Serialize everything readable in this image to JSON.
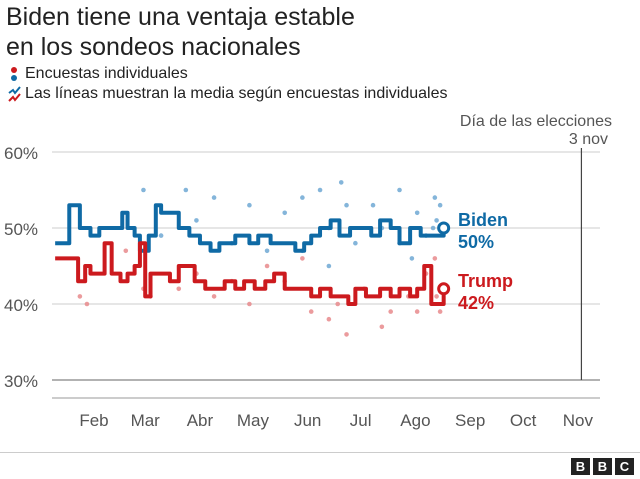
{
  "title_lines": [
    "Biden tiene una ventaja estable",
    "en los sondeos nacionales"
  ],
  "legend": {
    "dots": "Encuestas individuales",
    "lines": "Las líneas muestran la media según encuestas individuales"
  },
  "logo": "BBC",
  "chart_data": {
    "type": "line",
    "title": "Biden tiene una ventaja estable en los sondeos nacionales",
    "xlabel": "",
    "ylabel": "",
    "x_unit": "day of year 2020",
    "ylim": [
      30,
      60
    ],
    "yticks": [
      {
        "v": 60,
        "label": "60%"
      },
      {
        "v": 50,
        "label": "50%"
      },
      {
        "v": 40,
        "label": "40%"
      },
      {
        "v": 30,
        "label": "30%"
      }
    ],
    "xticks": [
      {
        "day": 32,
        "label": "Feb"
      },
      {
        "day": 61,
        "label": "Mar"
      },
      {
        "day": 92,
        "label": "Abr"
      },
      {
        "day": 122,
        "label": "May"
      },
      {
        "day": 153,
        "label": "Jun"
      },
      {
        "day": 183,
        "label": "Jul"
      },
      {
        "day": 214,
        "label": "Ago"
      },
      {
        "day": 245,
        "label": "Sep"
      },
      {
        "day": 275,
        "label": "Oct"
      },
      {
        "day": 306,
        "label": "Nov"
      }
    ],
    "annotation": {
      "day": 308,
      "line1": "Día de las elecciones",
      "line2": "3 nov"
    },
    "series": [
      {
        "name": "Biden",
        "final_label": "50%",
        "color": "#0f6aa5",
        "dot_color": "#6fa8d4",
        "line": [
          [
            10,
            48
          ],
          [
            16,
            48
          ],
          [
            18,
            53
          ],
          [
            21,
            53
          ],
          [
            24,
            50
          ],
          [
            30,
            49
          ],
          [
            35,
            50
          ],
          [
            44,
            50
          ],
          [
            48,
            52
          ],
          [
            51,
            50
          ],
          [
            55,
            49
          ],
          [
            58,
            47
          ],
          [
            63,
            49
          ],
          [
            67,
            53
          ],
          [
            70,
            52
          ],
          [
            76,
            52
          ],
          [
            80,
            50
          ],
          [
            86,
            49
          ],
          [
            92,
            48
          ],
          [
            98,
            47
          ],
          [
            103,
            48
          ],
          [
            112,
            49
          ],
          [
            120,
            48
          ],
          [
            125,
            49
          ],
          [
            132,
            48
          ],
          [
            140,
            48
          ],
          [
            146,
            47
          ],
          [
            151,
            48
          ],
          [
            155,
            49
          ],
          [
            160,
            50
          ],
          [
            166,
            51
          ],
          [
            171,
            49
          ],
          [
            177,
            50
          ],
          [
            183,
            50
          ],
          [
            189,
            49
          ],
          [
            194,
            51
          ],
          [
            200,
            50
          ],
          [
            205,
            48
          ],
          [
            211,
            50
          ],
          [
            217,
            49
          ],
          [
            222,
            49
          ],
          [
            230,
            50
          ]
        ],
        "polls": [
          [
            60,
            55
          ],
          [
            84,
            55
          ],
          [
            100,
            54
          ],
          [
            120,
            53
          ],
          [
            150,
            54
          ],
          [
            160,
            55
          ],
          [
            172,
            56
          ],
          [
            175,
            53
          ],
          [
            190,
            53
          ],
          [
            205,
            55
          ],
          [
            215,
            52
          ],
          [
            225,
            54
          ],
          [
            228,
            53
          ],
          [
            226,
            51
          ],
          [
            70,
            49
          ],
          [
            90,
            51
          ],
          [
            110,
            48
          ],
          [
            130,
            47
          ],
          [
            150,
            47
          ],
          [
            165,
            50
          ],
          [
            180,
            48
          ],
          [
            195,
            50
          ],
          [
            205,
            48
          ],
          [
            212,
            46
          ],
          [
            220,
            49
          ],
          [
            224,
            50
          ],
          [
            140,
            52
          ],
          [
            165,
            45
          ]
        ]
      },
      {
        "name": "Trump",
        "final_label": "42%",
        "color": "#cc1a1e",
        "dot_color": "#e88a8c",
        "line": [
          [
            10,
            46
          ],
          [
            18,
            46
          ],
          [
            23,
            43
          ],
          [
            27,
            45
          ],
          [
            30,
            44
          ],
          [
            35,
            44
          ],
          [
            38,
            48
          ],
          [
            42,
            44
          ],
          [
            47,
            43
          ],
          [
            51,
            44
          ],
          [
            55,
            45
          ],
          [
            58,
            48
          ],
          [
            61,
            41
          ],
          [
            64,
            44
          ],
          [
            69,
            44
          ],
          [
            75,
            43
          ],
          [
            80,
            45
          ],
          [
            84,
            45
          ],
          [
            89,
            43
          ],
          [
            95,
            42
          ],
          [
            100,
            42
          ],
          [
            106,
            43
          ],
          [
            112,
            42
          ],
          [
            117,
            43
          ],
          [
            123,
            42
          ],
          [
            129,
            43
          ],
          [
            134,
            44
          ],
          [
            140,
            42
          ],
          [
            149,
            42
          ],
          [
            155,
            41
          ],
          [
            160,
            42
          ],
          [
            166,
            41
          ],
          [
            171,
            41
          ],
          [
            176,
            40
          ],
          [
            180,
            42
          ],
          [
            186,
            41
          ],
          [
            194,
            42
          ],
          [
            200,
            41
          ],
          [
            205,
            42
          ],
          [
            211,
            41
          ],
          [
            215,
            42
          ],
          [
            219,
            45
          ],
          [
            223,
            40
          ],
          [
            230,
            42
          ]
        ],
        "polls": [
          [
            24,
            41
          ],
          [
            28,
            40
          ],
          [
            50,
            47
          ],
          [
            60,
            42
          ],
          [
            64,
            41
          ],
          [
            80,
            42
          ],
          [
            90,
            44
          ],
          [
            100,
            41
          ],
          [
            110,
            43
          ],
          [
            120,
            40
          ],
          [
            130,
            45
          ],
          [
            140,
            43
          ],
          [
            150,
            46
          ],
          [
            155,
            39
          ],
          [
            165,
            38
          ],
          [
            170,
            40
          ],
          [
            175,
            36
          ],
          [
            185,
            42
          ],
          [
            195,
            37
          ],
          [
            200,
            39
          ],
          [
            210,
            41
          ],
          [
            215,
            39
          ],
          [
            220,
            44
          ],
          [
            225,
            46
          ],
          [
            228,
            39
          ],
          [
            226,
            41
          ]
        ]
      }
    ]
  }
}
